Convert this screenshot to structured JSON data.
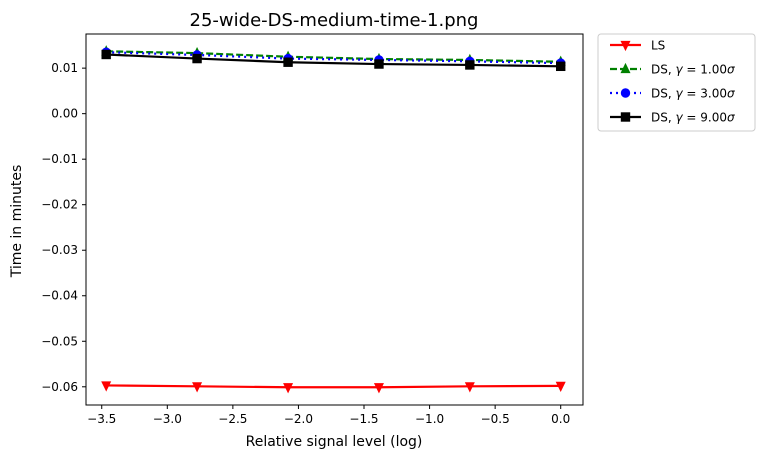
{
  "chart_data": {
    "type": "line",
    "title": "25-wide-DS-medium-time-1.png",
    "xlabel": "Relative signal level (log)",
    "ylabel": "Time in minutes",
    "xlim": [
      -3.62,
      0.17
    ],
    "ylim": [
      -0.064,
      0.0175
    ],
    "xticks": [
      -3.5,
      -3.0,
      -2.5,
      -2.0,
      -1.5,
      -1.0,
      -0.5,
      0.0
    ],
    "xtick_labels": [
      "−3.5",
      "−3.0",
      "−2.5",
      "−2.0",
      "−1.5",
      "−1.0",
      "−0.5",
      "0.0"
    ],
    "yticks": [
      0.01,
      0.0,
      -0.01,
      -0.02,
      -0.03,
      -0.04,
      -0.05,
      -0.06
    ],
    "ytick_labels": [
      "0.01",
      "0.00",
      "−0.01",
      "−0.02",
      "−0.03",
      "−0.04",
      "−0.05",
      "−0.06"
    ],
    "grid": false,
    "legend_position": "outside-top-right",
    "x": [
      -3.466,
      -2.773,
      -2.079,
      -1.386,
      -0.693,
      0.0
    ],
    "series": [
      {
        "name": "LS",
        "legend_parts": {
          "prefix": "LS",
          "gamma": "",
          "suffix": "",
          "sigma": ""
        },
        "color": "#ff0000",
        "linestyle": "solid",
        "marker": "triangle-down",
        "values": [
          -0.0597,
          -0.0599,
          -0.0601,
          -0.0601,
          -0.0599,
          -0.0598
        ]
      },
      {
        "name": "DS, γ = 1.00σ",
        "legend_parts": {
          "prefix": "DS, ",
          "gamma": "γ",
          "suffix": " = 1.00",
          "sigma": "σ"
        },
        "color": "#008000",
        "linestyle": "dashed",
        "marker": "triangle-up",
        "values": [
          0.0137,
          0.0133,
          0.0125,
          0.012,
          0.0118,
          0.0114
        ]
      },
      {
        "name": "DS, γ = 3.00σ",
        "legend_parts": {
          "prefix": "DS, ",
          "gamma": "γ",
          "suffix": " = 3.00",
          "sigma": "σ"
        },
        "color": "#0000ff",
        "linestyle": "dotted",
        "marker": "circle",
        "values": [
          0.0135,
          0.0129,
          0.0121,
          0.0118,
          0.0115,
          0.0111
        ]
      },
      {
        "name": "DS, γ = 9.00σ",
        "legend_parts": {
          "prefix": "DS, ",
          "gamma": "γ",
          "suffix": " = 9.00",
          "sigma": "σ"
        },
        "color": "#000000",
        "linestyle": "solid",
        "marker": "square",
        "values": [
          0.013,
          0.0121,
          0.0113,
          0.0109,
          0.0107,
          0.0104
        ]
      }
    ]
  }
}
